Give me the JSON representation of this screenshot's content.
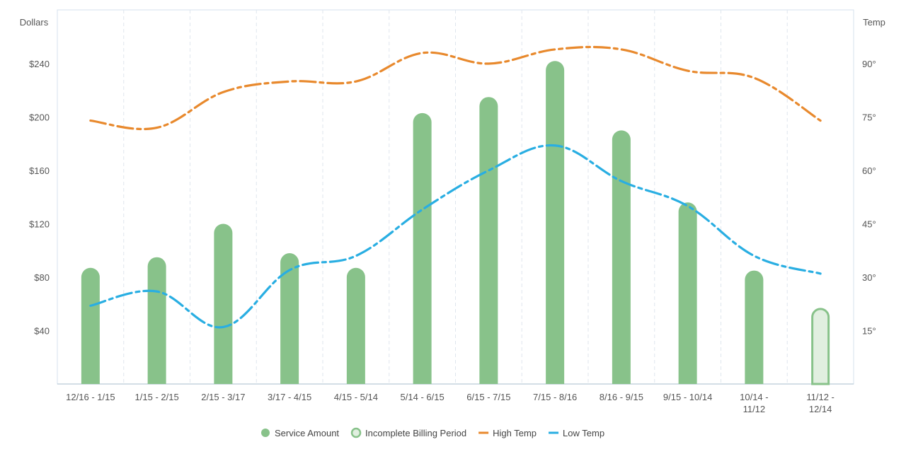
{
  "chart_data": {
    "type": "bar",
    "categories": [
      "12/16 - 1/15",
      "1/15 - 2/15",
      "2/15 - 3/17",
      "3/17 - 4/15",
      "4/15 - 5/14",
      "5/14 - 6/15",
      "6/15 - 7/15",
      "7/15 - 8/16",
      "8/16 - 9/15",
      "9/15 - 10/14",
      "10/14 - 11/12",
      "11/12 - 12/14"
    ],
    "category_lines": [
      [
        "12/16 - 1/15"
      ],
      [
        "1/15 - 2/15"
      ],
      [
        "2/15 - 3/17"
      ],
      [
        "3/17 - 4/15"
      ],
      [
        "4/15 - 5/14"
      ],
      [
        "5/14 - 6/15"
      ],
      [
        "6/15 - 7/15"
      ],
      [
        "7/15 - 8/16"
      ],
      [
        "8/16 - 9/15"
      ],
      [
        "9/15 - 10/14"
      ],
      [
        "10/14 -",
        "11/12"
      ],
      [
        "11/12 -",
        "12/14"
      ]
    ],
    "ylabel": "Dollars",
    "y2label": "Temp",
    "ylim": [
      0,
      280
    ],
    "y2lim": [
      0,
      105
    ],
    "yticks": [
      40,
      80,
      120,
      160,
      200,
      240
    ],
    "ytick_labels": [
      "$40",
      "$80",
      "$120",
      "$160",
      "$200",
      "$240"
    ],
    "y2ticks": [
      15,
      30,
      45,
      60,
      75,
      90
    ],
    "y2tick_labels": [
      "15°",
      "30°",
      "45°",
      "60°",
      "75°",
      "90°"
    ],
    "series": [
      {
        "name": "Service Amount",
        "kind": "bar",
        "axis": "left",
        "values": [
          87,
          95,
          120,
          98,
          87,
          203,
          215,
          242,
          190,
          136,
          85,
          null
        ],
        "color": "#88c28a"
      },
      {
        "name": "Incomplete Billing Period",
        "kind": "bar-outline",
        "axis": "left",
        "values": [
          null,
          null,
          null,
          null,
          null,
          null,
          null,
          null,
          null,
          null,
          null,
          57
        ],
        "color": "#88c28a",
        "fill": "#e1efe0"
      },
      {
        "name": "High Temp",
        "kind": "line",
        "axis": "right",
        "values": [
          74,
          72,
          82,
          85,
          85,
          93,
          90,
          94,
          94,
          88,
          86,
          74
        ],
        "color": "#e8892d"
      },
      {
        "name": "Low Temp",
        "kind": "line",
        "axis": "right",
        "values": [
          22,
          26,
          16,
          32,
          36,
          49,
          60,
          67,
          57,
          50,
          36,
          31
        ],
        "color": "#29aee2"
      }
    ],
    "legend": {
      "position": "bottom"
    },
    "grid": {
      "vertical": true,
      "horizontal": false
    }
  }
}
